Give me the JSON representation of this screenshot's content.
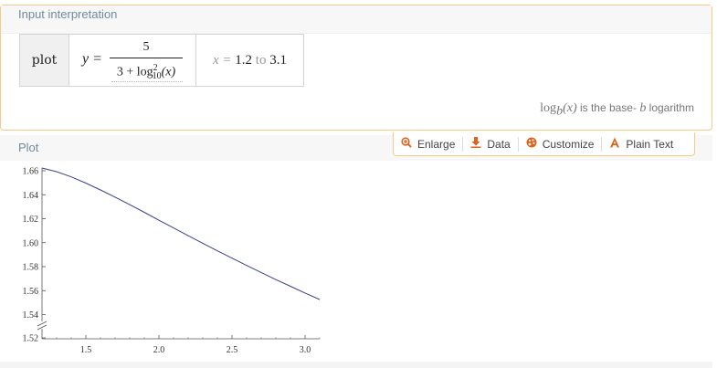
{
  "input_pod": {
    "title": "Input interpretation",
    "label": "plot",
    "formula": {
      "lhs": "y =",
      "numerator": "5",
      "denominator_prefix": "3 + log",
      "denominator_sub": "10",
      "denominator_sup": "2",
      "denominator_arg": "(x)"
    },
    "range": {
      "var": "x =",
      "from": "1.2",
      "to_word": "to",
      "to": "3.1"
    },
    "note": {
      "func_prefix": "log",
      "func_sub": "b",
      "func_arg": "(x)",
      "text": " is the base- ",
      "base": "b",
      "suffix": " logarithm"
    }
  },
  "plot_pod": {
    "title": "Plot",
    "toolbar": [
      {
        "label": "Enlarge",
        "icon": "magnify-plus-icon"
      },
      {
        "label": "Data",
        "icon": "download-icon"
      },
      {
        "label": "Customize",
        "icon": "palette-icon"
      },
      {
        "label": "Plain Text",
        "icon": "letter-a-icon"
      }
    ]
  },
  "chart_data": {
    "type": "line",
    "series": [
      {
        "x": [
          1.2,
          1.3,
          1.4,
          1.5,
          1.6,
          1.7,
          1.8,
          1.9,
          2.0,
          2.1,
          2.2,
          2.3,
          2.4,
          2.5,
          2.6,
          2.7,
          2.8,
          2.9,
          3.0,
          3.1
        ],
        "y": [
          1.6623,
          1.6592,
          1.6549,
          1.6497,
          1.644,
          1.638,
          1.6317,
          1.6253,
          1.6187,
          1.6123,
          1.6058,
          1.5995,
          1.5932,
          1.5871,
          1.581,
          1.5751,
          1.5692,
          1.5636,
          1.558,
          1.5526
        ]
      }
    ],
    "xlim": [
      1.2,
      3.1
    ],
    "ylim": [
      1.52,
      1.66
    ],
    "xticks": [
      "1.5",
      "2.0",
      "2.5",
      "3.0"
    ],
    "xtick_values": [
      1.5,
      2.0,
      2.5,
      3.0
    ],
    "yticks": [
      "1.52",
      "1.54",
      "1.56",
      "1.58",
      "1.60",
      "1.62",
      "1.64",
      "1.66"
    ],
    "ytick_values": [
      1.52,
      1.54,
      1.56,
      1.58,
      1.6,
      1.62,
      1.64,
      1.66
    ],
    "axis_break": "y",
    "grid": false,
    "line_color": "#3a3f8f"
  }
}
